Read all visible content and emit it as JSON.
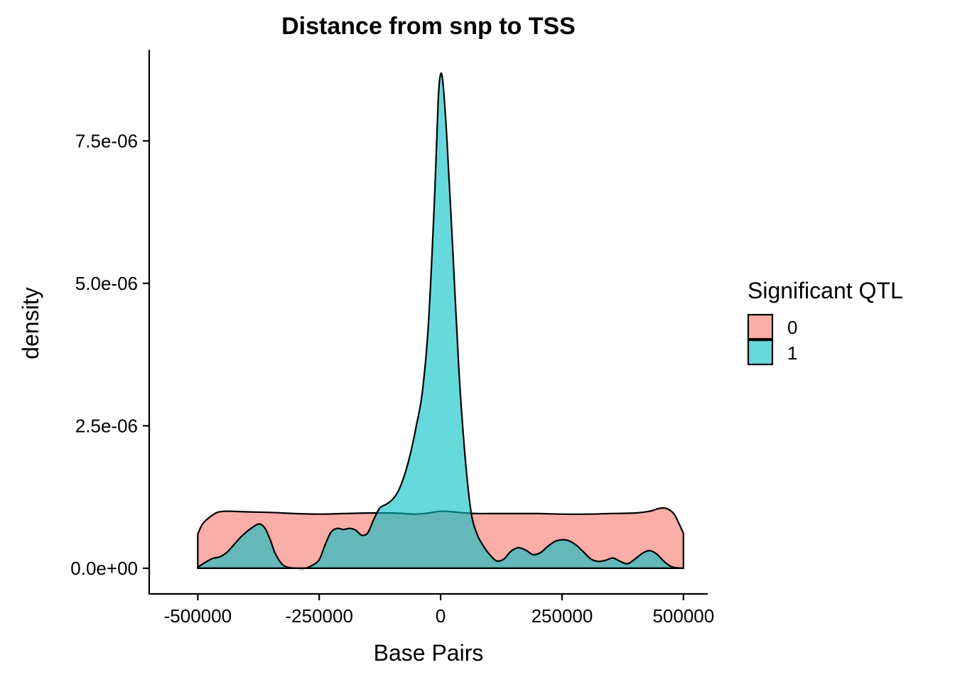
{
  "chart_data": {
    "type": "area",
    "title": "Distance from snp to TSS",
    "xlabel": "Base Pairs",
    "ylabel": "density",
    "xlim": [
      -600000,
      550000
    ],
    "ylim": [
      -4.5e-07,
      9.1e-06
    ],
    "x_ticks": [
      -500000,
      -250000,
      0,
      250000,
      500000
    ],
    "x_tick_labels": [
      "-500000",
      "-250000",
      "0",
      "250000",
      "500000"
    ],
    "y_ticks": [
      0,
      2.5e-06,
      5e-06,
      7.5e-06
    ],
    "y_tick_labels": [
      "0.0e+00",
      "2.5e-06",
      "5.0e-06",
      "7.5e-06"
    ],
    "grid": false,
    "legend": {
      "title": "Significant QTL",
      "position": "right",
      "entries": [
        {
          "label": "0",
          "color": "#F8766D"
        },
        {
          "label": "1",
          "color": "#00BFC4"
        }
      ]
    },
    "fill_opacity": 0.6,
    "series": [
      {
        "name": "0",
        "color": "#F8766D",
        "x": [
          -500000,
          -490000,
          -475000,
          -460000,
          -445000,
          -430000,
          -400000,
          -350000,
          -300000,
          -250000,
          -200000,
          -150000,
          -100000,
          -75000,
          -50000,
          -25000,
          0,
          25000,
          50000,
          75000,
          100000,
          150000,
          200000,
          250000,
          300000,
          350000,
          400000,
          430000,
          450000,
          465000,
          480000,
          490000,
          500000
        ],
        "y": [
          6e-07,
          7.8e-07,
          9e-07,
          9.8e-07,
          1e-06,
          1e-06,
          9.9e-07,
          9.8e-07,
          9.6e-07,
          9.5e-07,
          9.6e-07,
          9.7e-07,
          9.7e-07,
          9.6e-07,
          9.5e-07,
          9.7e-07,
          1e-06,
          9.9e-07,
          9.7e-07,
          9.6e-07,
          9.6e-07,
          9.6e-07,
          9.6e-07,
          9.5e-07,
          9.5e-07,
          9.6e-07,
          9.7e-07,
          1e-06,
          1.05e-06,
          1.05e-06,
          9.6e-07,
          8e-07,
          6.1e-07
        ]
      },
      {
        "name": "1",
        "color": "#00BFC4",
        "x": [
          -500000,
          -485000,
          -470000,
          -455000,
          -440000,
          -425000,
          -410000,
          -395000,
          -380000,
          -370000,
          -360000,
          -350000,
          -340000,
          -325000,
          -310000,
          -295000,
          -280000,
          -265000,
          -250000,
          -237500,
          -225000,
          -212500,
          -200000,
          -187500,
          -175000,
          -162500,
          -150000,
          -137500,
          -125000,
          -112500,
          -100000,
          -87500,
          -75000,
          -62500,
          -50000,
          -37500,
          -25000,
          -12500,
          -5000,
          0,
          5000,
          12500,
          25000,
          37500,
          50000,
          62500,
          75000,
          87500,
          100000,
          115000,
          130000,
          145000,
          160000,
          175000,
          190000,
          205000,
          220000,
          235000,
          250000,
          265000,
          280000,
          295000,
          310000,
          325000,
          340000,
          355000,
          370000,
          385000,
          400000,
          415000,
          430000,
          445000,
          460000,
          475000,
          490000,
          500000
        ],
        "y": [
          2e-08,
          1e-07,
          1.7e-07,
          2e-07,
          2.8e-07,
          4.2e-07,
          5.6e-07,
          6.7e-07,
          7.6e-07,
          7.7e-07,
          6.8e-07,
          4.8e-07,
          2.5e-07,
          6e-08,
          1e-08,
          0.0,
          0.0,
          5e-08,
          1.5e-07,
          4.2e-07,
          6.4e-07,
          7e-07,
          6.8e-07,
          7e-07,
          6.7e-07,
          5.8e-07,
          6.2e-07,
          8.6e-07,
          1.06e-06,
          1.12e-06,
          1.2e-06,
          1.35e-06,
          1.62e-06,
          2e-06,
          2.5e-06,
          3.1e-06,
          4.3e-06,
          6.5e-06,
          8.2e-06,
          8.67e-06,
          8.5e-06,
          7.6e-06,
          5.6e-06,
          3.5e-06,
          2e-06,
          1e-06,
          6e-07,
          4e-07,
          2.5e-07,
          1.3e-07,
          1.6e-07,
          3e-07,
          3.6e-07,
          3.2e-07,
          2.4e-07,
          2.7e-07,
          3.8e-07,
          4.7e-07,
          5e-07,
          4.8e-07,
          4e-07,
          2.8e-07,
          1.6e-07,
          1.2e-07,
          1.4e-07,
          1.8e-07,
          1.2e-07,
          8e-08,
          1.6e-07,
          2.6e-07,
          3.1e-07,
          2.5e-07,
          1.2e-07,
          3e-08,
          5e-09,
          0.0
        ]
      }
    ]
  }
}
